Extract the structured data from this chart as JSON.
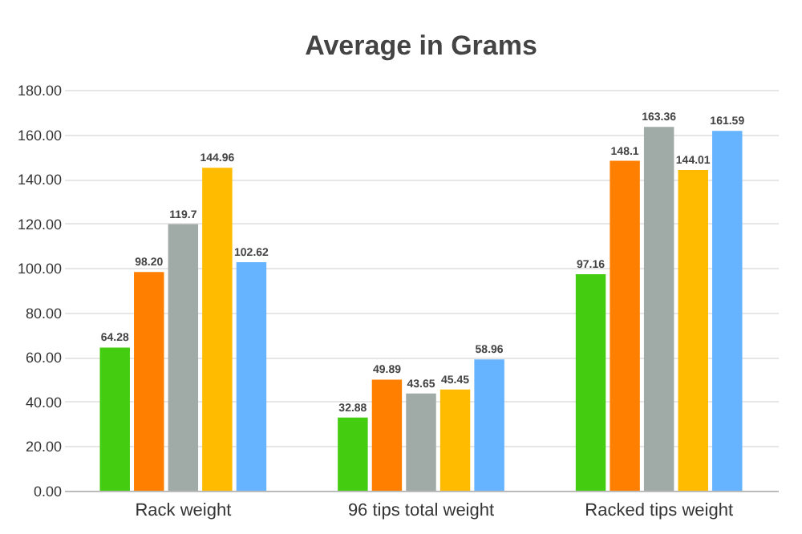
{
  "chart_data": {
    "type": "bar",
    "title": "Average in Grams",
    "categories": [
      "Rack weight",
      "96 tips total weight",
      "Racked tips weight"
    ],
    "series": [
      {
        "color": "#44cc11",
        "values": [
          64.28,
          32.88,
          97.16
        ],
        "value_labels": [
          "64.28",
          "32.88",
          "97.16"
        ]
      },
      {
        "color": "#ff8000",
        "values": [
          98.2,
          49.89,
          148.1
        ],
        "value_labels": [
          "98.20",
          "49.89",
          "148.1"
        ]
      },
      {
        "color": "#a0aaa6",
        "values": [
          119.7,
          43.65,
          163.36
        ],
        "value_labels": [
          "119.7",
          "43.65",
          "163.36"
        ]
      },
      {
        "color": "#ffbb00",
        "values": [
          144.96,
          45.45,
          144.01
        ],
        "value_labels": [
          "144.96",
          "45.45",
          "144.01"
        ]
      },
      {
        "color": "#66b3ff",
        "values": [
          102.62,
          58.96,
          161.59
        ],
        "value_labels": [
          "102.62",
          "58.96",
          "161.59"
        ]
      }
    ],
    "ylim": [
      0,
      180
    ],
    "yticks": [
      {
        "value": 0,
        "label": "0.00"
      },
      {
        "value": 20,
        "label": "20.00"
      },
      {
        "value": 40,
        "label": "40.00"
      },
      {
        "value": 60,
        "label": "60.00"
      },
      {
        "value": 80,
        "label": "80.00"
      },
      {
        "value": 100,
        "label": "100.00"
      },
      {
        "value": 120,
        "label": "120.00"
      },
      {
        "value": 140,
        "label": "140.00"
      },
      {
        "value": 160,
        "label": "160.00"
      },
      {
        "value": 180,
        "label": "180.00"
      }
    ],
    "grid": "y",
    "legend": false
  }
}
